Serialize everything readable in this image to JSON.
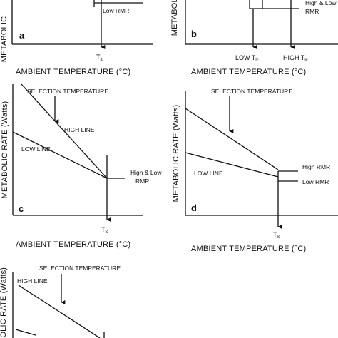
{
  "colors": {
    "ink": "#111111",
    "background": "#ffffff"
  },
  "panels": {
    "a": {
      "letter": "a",
      "ylabel": "METABOLIC",
      "xlabel": "AMBIENT TEMPERATURE (°C)",
      "curve_labels": [
        "Low RMR"
      ],
      "tlc": "T",
      "tlc_sub": "lc"
    },
    "b": {
      "letter": "b",
      "ylabel": "METABOLIC",
      "xlabel": "AMBIENT TEMPERATURE (°C)",
      "curve_labels": [
        "High & Low",
        "RMR"
      ],
      "tlc_low": "LOW T",
      "tlc_high": "HIGH T",
      "tlc_sub": "lc"
    },
    "c": {
      "letter": "c",
      "ylabel": "METABOLIC RATE (Watts)",
      "xlabel": "AMBIENT TEMPERATURE (°C)",
      "selection": "SELECTION TEMPERATURE",
      "high_line": "HIGH LINE",
      "low_line": "LOW LINE",
      "rmr_label": [
        "High & Low",
        "RMR"
      ],
      "tlc": "T",
      "tlc_sub": "lc"
    },
    "d": {
      "letter": "d",
      "ylabel": "METABOLIC RATE (Watts)",
      "xlabel": "AMBIENT TEMPERATURE (°C)",
      "selection": "SELECTION TEMPERATURE",
      "low_line": "LOW LINE",
      "high_rmr": "High RMR",
      "low_rmr": "Low RMR",
      "tlc": "T",
      "tlc_sub": "lc"
    },
    "e": {
      "ylabel": "BOLIC RATE (Watts)",
      "selection": "SELECTION TEMPERATURE",
      "high_line": "HIGH LINE"
    }
  }
}
